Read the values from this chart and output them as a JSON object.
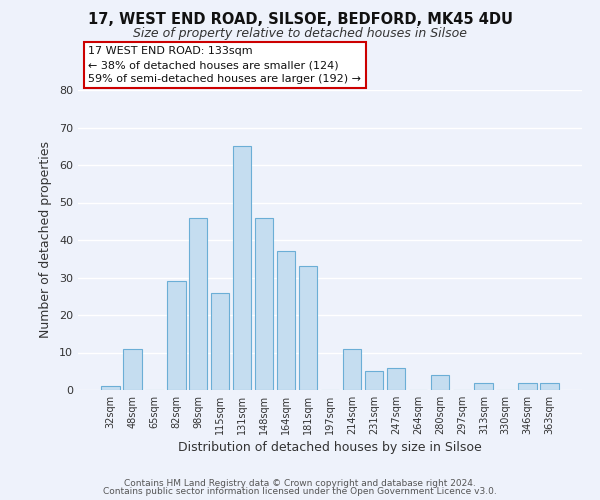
{
  "title1": "17, WEST END ROAD, SILSOE, BEDFORD, MK45 4DU",
  "title2": "Size of property relative to detached houses in Silsoe",
  "xlabel": "Distribution of detached houses by size in Silsoe",
  "ylabel": "Number of detached properties",
  "bar_color": "#c5ddf0",
  "bar_edge_color": "#6baed6",
  "categories": [
    "32sqm",
    "48sqm",
    "65sqm",
    "82sqm",
    "98sqm",
    "115sqm",
    "131sqm",
    "148sqm",
    "164sqm",
    "181sqm",
    "197sqm",
    "214sqm",
    "231sqm",
    "247sqm",
    "264sqm",
    "280sqm",
    "297sqm",
    "313sqm",
    "330sqm",
    "346sqm",
    "363sqm"
  ],
  "values": [
    1,
    11,
    0,
    29,
    46,
    26,
    65,
    46,
    37,
    33,
    0,
    11,
    5,
    6,
    0,
    4,
    0,
    2,
    0,
    2,
    2
  ],
  "ylim": [
    0,
    80
  ],
  "yticks": [
    0,
    10,
    20,
    30,
    40,
    50,
    60,
    70,
    80
  ],
  "annotation_line1": "17 WEST END ROAD: 133sqm",
  "annotation_line2": "← 38% of detached houses are smaller (124)",
  "annotation_line3": "59% of semi-detached houses are larger (192) →",
  "footer1": "Contains HM Land Registry data © Crown copyright and database right 2024.",
  "footer2": "Contains public sector information licensed under the Open Government Licence v3.0.",
  "background_color": "#eef2fb",
  "highlight_bar_index": 6
}
